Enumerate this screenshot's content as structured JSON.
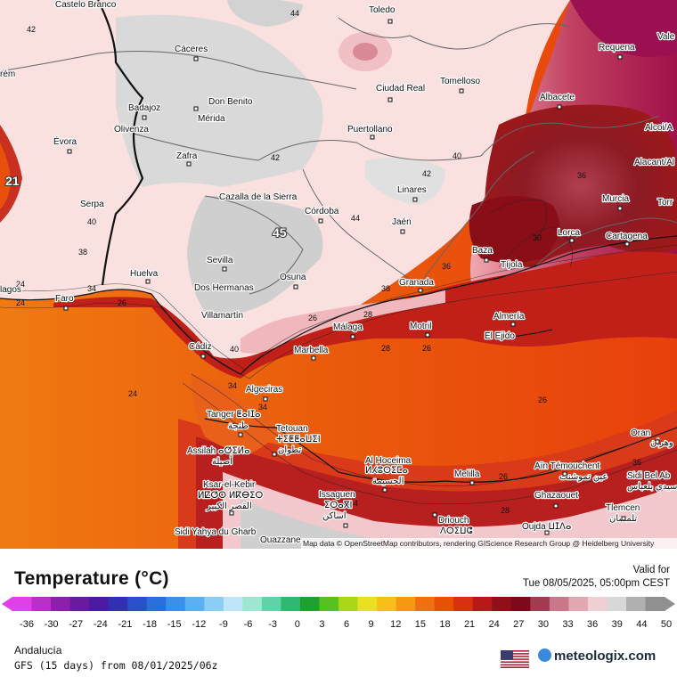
{
  "map": {
    "cities": [
      {
        "name": "Castelo Branco"
      },
      {
        "name": "Toledo"
      },
      {
        "name": "Cáceres"
      },
      {
        "name": "Requena"
      },
      {
        "name": "Vale"
      },
      {
        "name": "Tomelloso"
      },
      {
        "name": "Ciudad Real"
      },
      {
        "name": "Don Benito"
      },
      {
        "name": "Badajoz"
      },
      {
        "name": "Mérida"
      },
      {
        "name": "Albacete"
      },
      {
        "name": "Olivenza"
      },
      {
        "name": "Puertollano"
      },
      {
        "name": "Alcoi/A"
      },
      {
        "name": "Évora"
      },
      {
        "name": "Zafra"
      },
      {
        "name": "Alacant/Al"
      },
      {
        "name": "Linares"
      },
      {
        "name": "Cazalla de la Sierra"
      },
      {
        "name": "Serpa"
      },
      {
        "name": "Murcia"
      },
      {
        "name": "Torr"
      },
      {
        "name": "Córdoba"
      },
      {
        "name": "Jaén"
      },
      {
        "name": "Lorca"
      },
      {
        "name": "Cartagena"
      },
      {
        "name": "Sevilla"
      },
      {
        "name": "Baza"
      },
      {
        "name": "Huelva"
      },
      {
        "name": "Tíjola"
      },
      {
        "name": "Osuna"
      },
      {
        "name": "Faro"
      },
      {
        "name": "Dos Hermanas"
      },
      {
        "name": "Granada"
      },
      {
        "name": "lagos"
      },
      {
        "name": "Villamartín"
      },
      {
        "name": "Almería"
      },
      {
        "name": "Málaga"
      },
      {
        "name": "Motril"
      },
      {
        "name": "El Ejido"
      },
      {
        "name": "Marbella"
      },
      {
        "name": "Cádiz"
      },
      {
        "name": "Algeciras"
      },
      {
        "name": "Tanger ⵟⴰⵏⵊⴰ"
      },
      {
        "name": "طنجة"
      },
      {
        "name": "Tetouan"
      },
      {
        "name": "ⵜⵉⵟⵟⴰⵡⵉⵏ"
      },
      {
        "name": "تطوان"
      },
      {
        "name": "Assilah ⴰⵚⵉⵍⴰ"
      },
      {
        "name": "أصيلة"
      },
      {
        "name": "Oran"
      },
      {
        "name": "وهران"
      },
      {
        "name": "Al Hoceima"
      },
      {
        "name": "ⵍⵃⵓⵙⵉⵎⴰ"
      },
      {
        "name": "الحسيمة"
      },
      {
        "name": "Melilla"
      },
      {
        "name": "Aïn Témouchent"
      },
      {
        "name": "عين تموشنت"
      },
      {
        "name": "Sidi Bel Ab"
      },
      {
        "name": "سيدي بلعباس"
      },
      {
        "name": "Ksar-el-Kebir"
      },
      {
        "name": "ⵍⵇⵚⵔ ⵍⴽⴱⵉⵔ"
      },
      {
        "name": "القصر الكبير"
      },
      {
        "name": "Issaguen"
      },
      {
        "name": "ⵉⵙⴰⴳⵏ"
      },
      {
        "name": "اساكن"
      },
      {
        "name": "Ghazaouet"
      },
      {
        "name": "Tlemcen"
      },
      {
        "name": "تلمسان"
      },
      {
        "name": "Driouch"
      },
      {
        "name": "ⴷⵔⵉⵡⵛ"
      },
      {
        "name": "Sidi Yahya du Gharb"
      },
      {
        "name": "Ouazzane"
      },
      {
        "name": "Oujda ⵡⵊⴷⴰ"
      },
      {
        "name": "rém"
      }
    ],
    "contour_labels": [
      "42",
      "44",
      "42",
      "40",
      "42",
      "40",
      "38",
      "44",
      "34",
      "26",
      "24",
      "38",
      "36",
      "26",
      "28",
      "26",
      "24",
      "40",
      "34",
      "26",
      "36",
      "34",
      "28",
      "28",
      "26",
      "30",
      "36",
      "24",
      "34"
    ],
    "max_label": "45",
    "edge_label": "21",
    "attribution": "Map data © OpenStreetMap contributors, rendering GIScience Research Group @ Heidelberg University"
  },
  "legend": {
    "title": "Temperature (°C)",
    "valid_label": "Valid for",
    "valid_time": "Tue 08/05/2025, 05:00pm CEST",
    "ticks": [
      "-36",
      "-30",
      "-27",
      "-24",
      "-21",
      "-18",
      "-15",
      "-12",
      "-9",
      "-6",
      "-3",
      "0",
      "3",
      "6",
      "9",
      "12",
      "15",
      "18",
      "21",
      "24",
      "27",
      "30",
      "33",
      "36",
      "39",
      "44",
      "50"
    ],
    "colors": [
      "#e040e8",
      "#b830c8",
      "#8c20a8",
      "#6a1a9c",
      "#4a1aa0",
      "#3030b0",
      "#2850c8",
      "#2a70dc",
      "#3a90e8",
      "#5ab0f0",
      "#8ccdf5",
      "#bfe6f8",
      "#9fe6d0",
      "#60d2a8",
      "#30b870",
      "#20a030",
      "#58c020",
      "#a8d818",
      "#e8e020",
      "#f5c018",
      "#f59a10",
      "#f07010",
      "#e85008",
      "#d83010",
      "#b81818",
      "#901018",
      "#7a0a1a",
      "#a03c50",
      "#c87888",
      "#e0a8b0",
      "#f0d0d4",
      "#d8d8d8",
      "#b0b0b0",
      "#909090"
    ]
  },
  "footer": {
    "region": "Andalucía",
    "model": "GFS (15 days) from 08/01/2025/06z",
    "brand": "meteologix.com"
  }
}
